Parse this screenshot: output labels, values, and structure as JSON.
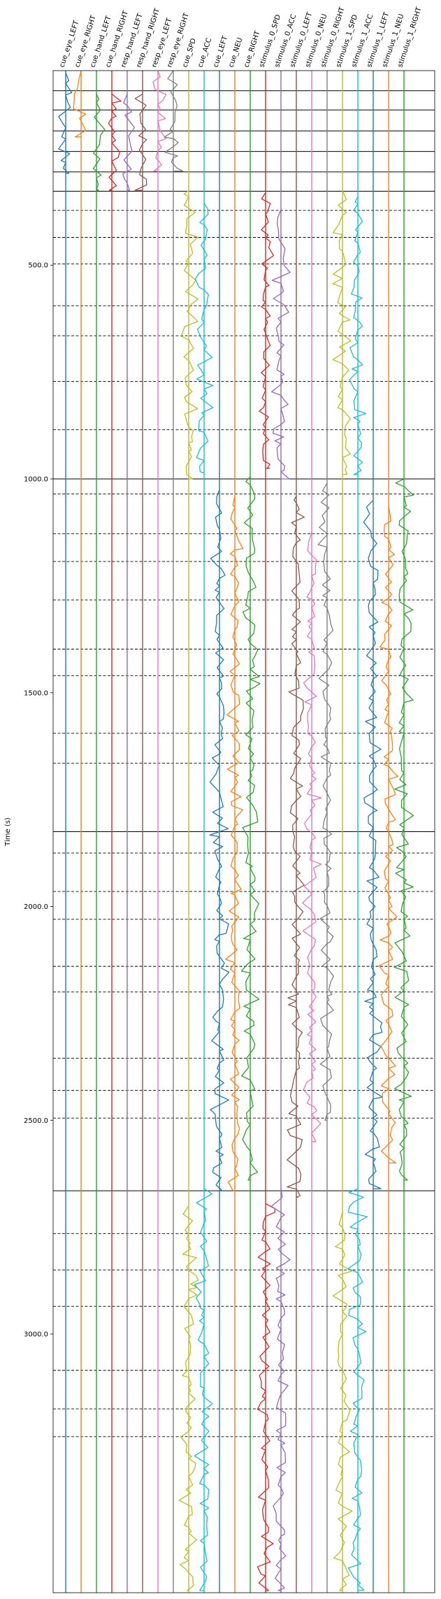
{
  "chart_data": {
    "type": "line",
    "title": "",
    "xlabel": "",
    "ylabel": "Time (s)",
    "ylim": [
      45,
      3605
    ],
    "y_inverted": true,
    "yticks": [
      500.0,
      1000.0,
      1500.0,
      2000.0,
      2500.0,
      3000.0
    ],
    "ytick_labels": [
      "500.0",
      "1000.0",
      "1500.0",
      "2000.0",
      "2500.0",
      "3000.0"
    ],
    "grid": false,
    "legend": "none",
    "colors": {
      "tab_blue": "#1f77b4",
      "tab_orange": "#ff7f0e",
      "tab_green": "#2ca02c",
      "tab_red": "#d62728",
      "tab_purple": "#9467bd",
      "tab_brown": "#8c564b",
      "tab_pink": "#e377c2",
      "tab_olive": "#bcbd22",
      "tab_cyan": "#17becf"
    },
    "channels": [
      {
        "label": "cue_eye_LEFT",
        "color": "#1f77b4",
        "segments": [
          [
            50,
            285
          ]
        ]
      },
      {
        "label": "cue_eye_RIGHT",
        "color": "#ff7f0e",
        "segments": [
          [
            45,
            200
          ]
        ]
      },
      {
        "label": "cue_hand_LEFT",
        "color": "#2ca02c",
        "segments": [
          [
            100,
            325
          ]
        ]
      },
      {
        "label": "cue_hand_RIGHT",
        "color": "#d62728",
        "segments": [
          [
            100,
            325
          ]
        ]
      },
      {
        "label": "resp_hand_LEFT",
        "color": "#9467bd",
        "segments": [
          [
            100,
            325
          ]
        ]
      },
      {
        "label": "resp_hand_RIGHT",
        "color": "#8c564b",
        "segments": [
          [
            100,
            325
          ]
        ]
      },
      {
        "label": "resp_eye_LEFT",
        "color": "#e377c2",
        "segments": [
          [
            45,
            280
          ]
        ]
      },
      {
        "label": "resp_eye_RIGHT",
        "color": "#7f7f7f",
        "segments": [
          [
            45,
            280
          ]
        ]
      },
      {
        "label": "cue_SPD",
        "color": "#bcbd22",
        "segments": [
          [
            325,
            1000
          ],
          [
            2700,
            3600
          ]
        ]
      },
      {
        "label": "cue_ACC",
        "color": "#17becf",
        "segments": [
          [
            355,
            985
          ],
          [
            2660,
            3600
          ]
        ]
      },
      {
        "label": "cue_LEFT",
        "color": "#1f77b4",
        "segments": [
          [
            1025,
            2665
          ]
        ]
      },
      {
        "label": "cue_NEU",
        "color": "#ff7f0e",
        "segments": [
          [
            1040,
            2665
          ]
        ]
      },
      {
        "label": "cue_RIGHT",
        "color": "#2ca02c",
        "segments": [
          [
            995,
            2640
          ]
        ]
      },
      {
        "label": "stimulus_0_SPD",
        "color": "#d62728",
        "segments": [
          [
            330,
            975
          ],
          [
            2695,
            3600
          ]
        ]
      },
      {
        "label": "stimulus_0_ACC",
        "color": "#9467bd",
        "segments": [
          [
            370,
            1000
          ],
          [
            2660,
            3600
          ]
        ]
      },
      {
        "label": "stimulus_0_LEFT",
        "color": "#8c564b",
        "segments": [
          [
            1040,
            2680
          ]
        ]
      },
      {
        "label": "stimulus_0_NEU",
        "color": "#e377c2",
        "segments": [
          [
            1125,
            2550
          ]
        ]
      },
      {
        "label": "stimulus_0_RIGHT",
        "color": "#7f7f7f",
        "segments": [
          [
            1010,
            2500
          ]
        ]
      },
      {
        "label": "stimulus_1_SPD",
        "color": "#bcbd22",
        "segments": [
          [
            325,
            990
          ],
          [
            2715,
            3600
          ]
        ]
      },
      {
        "label": "stimulus_1_ACC",
        "color": "#17becf",
        "segments": [
          [
            340,
            990
          ],
          [
            2660,
            3600
          ]
        ]
      },
      {
        "label": "stimulus_1_LEFT",
        "color": "#1f77b4",
        "segments": [
          [
            1050,
            2660
          ]
        ]
      },
      {
        "label": "stimulus_1_NEU",
        "color": "#ff7f0e",
        "segments": [
          [
            1065,
            2600
          ]
        ]
      },
      {
        "label": "stimulus_1_RIGHT",
        "color": "#2ca02c",
        "segments": [
          [
            1000,
            2640
          ]
        ]
      }
    ],
    "solid_boundaries": [
      92,
      137,
      186,
      234,
      282,
      327,
      1000,
      1825,
      2665
    ],
    "dashed_boundaries": [
      372,
      435,
      497,
      595,
      665,
      772,
      885,
      1035,
      1128,
      1193,
      1283,
      1398,
      1460,
      1595,
      1665,
      1875,
      1965,
      2030,
      2140,
      2200,
      2355,
      2430,
      2495,
      2765,
      2850,
      2935,
      3085,
      3175,
      3240
    ]
  }
}
